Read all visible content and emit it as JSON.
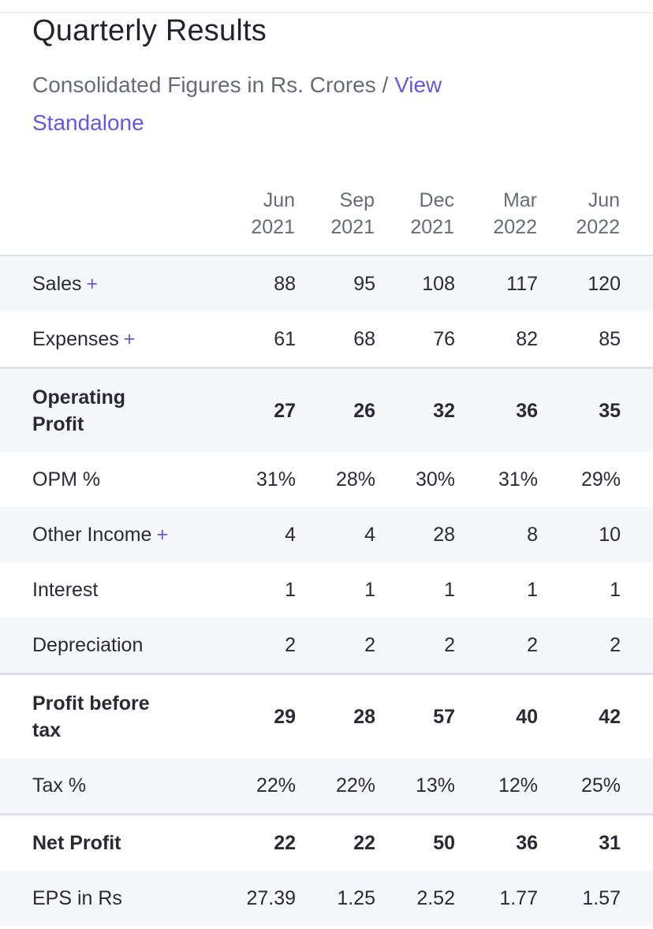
{
  "title": "Quarterly Results",
  "subtitle": "Consolidated Figures in Rs. Crores /",
  "view_link": "View Standalone",
  "columns": [
    {
      "month": "Jun",
      "year": "2021"
    },
    {
      "month": "Sep",
      "year": "2021"
    },
    {
      "month": "Dec",
      "year": "2021"
    },
    {
      "month": "Mar",
      "year": "2022"
    },
    {
      "month": "Jun",
      "year": "2022"
    }
  ],
  "rows": [
    {
      "label": "Sales",
      "expandable": "+",
      "values": [
        "88",
        "95",
        "108",
        "117",
        "120"
      ]
    },
    {
      "label": "Expenses",
      "expandable": "+",
      "values": [
        "61",
        "68",
        "76",
        "82",
        "85"
      ]
    },
    {
      "label": "Operating Profit",
      "values": [
        "27",
        "26",
        "32",
        "36",
        "35"
      ]
    },
    {
      "label": "OPM %",
      "values": [
        "31%",
        "28%",
        "30%",
        "31%",
        "29%"
      ]
    },
    {
      "label": "Other Income",
      "expandable": "+",
      "values": [
        "4",
        "4",
        "28",
        "8",
        "10"
      ]
    },
    {
      "label": "Interest",
      "values": [
        "1",
        "1",
        "1",
        "1",
        "1"
      ]
    },
    {
      "label": "Depreciation",
      "values": [
        "2",
        "2",
        "2",
        "2",
        "2"
      ]
    },
    {
      "label": "Profit before tax",
      "values": [
        "29",
        "28",
        "57",
        "40",
        "42"
      ]
    },
    {
      "label": "Tax %",
      "values": [
        "22%",
        "22%",
        "13%",
        "12%",
        "25%"
      ]
    },
    {
      "label": "Net Profit",
      "values": [
        "22",
        "22",
        "50",
        "36",
        "31"
      ]
    },
    {
      "label": "EPS in Rs",
      "values": [
        "27.39",
        "1.25",
        "2.52",
        "1.77",
        "1.57"
      ]
    }
  ],
  "colors": {
    "accent": "#6558e0",
    "row_shade": "#f6f7fb",
    "border": "#dde1ea"
  }
}
